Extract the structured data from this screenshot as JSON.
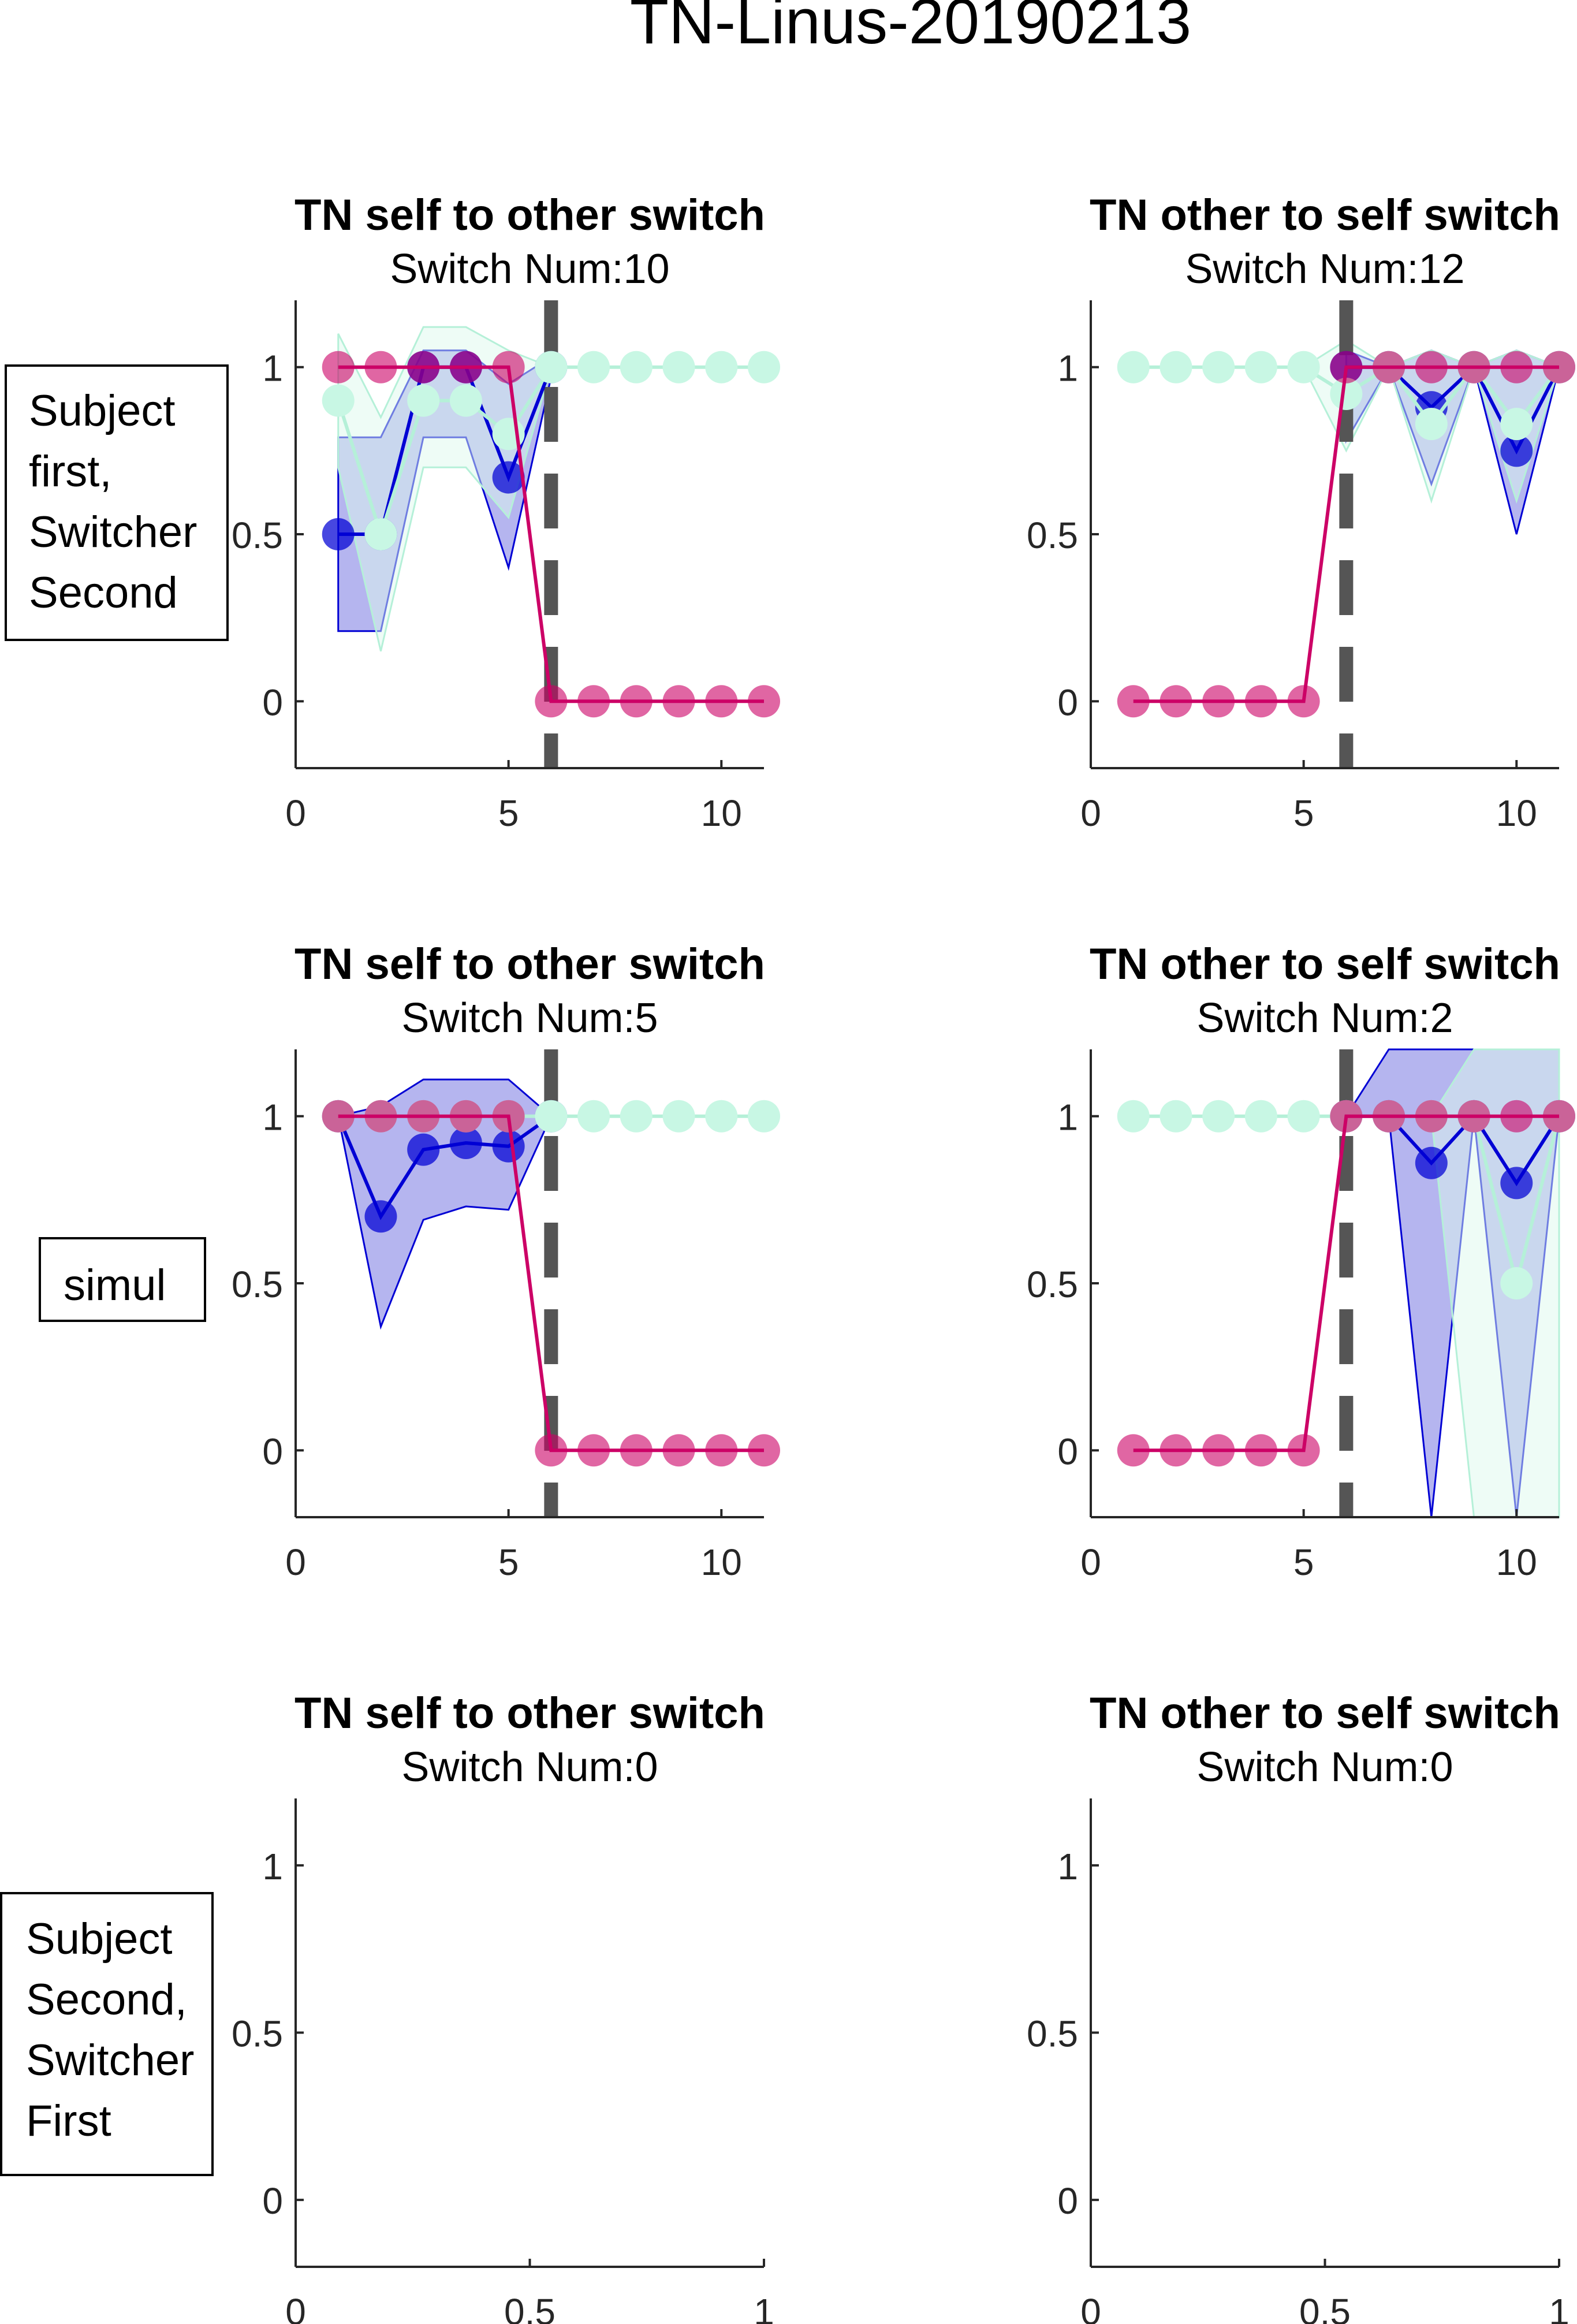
{
  "figure_title": "TN-Linus-20190213",
  "row_labels": [
    [
      "Subject",
      "first,",
      "Switcher",
      "Second"
    ],
    [
      "simul"
    ],
    [
      "Subject",
      "Second,",
      "Switcher",
      "First"
    ]
  ],
  "colors": {
    "blue": "#0000d4",
    "blue_fill": "#6b6bdf",
    "mint": "#c8f7e4",
    "mint_line": "#b5f0d8",
    "mint_fill": "#ddfaee",
    "magenta": "#cc0066",
    "dashed_switch_line": "#555555",
    "axis": "#262626"
  },
  "chart_data": [
    {
      "type": "line",
      "title": "TN self to other switch",
      "subtitle": "Switch Num:10",
      "xlim": [
        0,
        11
      ],
      "ylim": [
        -0.2,
        1.2
      ],
      "xticks": [
        0,
        5,
        10
      ],
      "yticks": [
        0,
        0.5,
        1
      ],
      "switch_x": 6,
      "series": [
        {
          "color": "blue",
          "x": [
            1,
            2,
            3,
            4,
            5,
            6
          ],
          "y": [
            0.5,
            0.5,
            1,
            1,
            0.67,
            1
          ],
          "band_lo": [
            0.21,
            0.21,
            0.79,
            0.79,
            0.4,
            0.97
          ],
          "band_hi": [
            0.79,
            0.79,
            1.05,
            1.05,
            0.95,
            1.03
          ]
        },
        {
          "color": "mint",
          "x": [
            1,
            2,
            3,
            4,
            5,
            6,
            7,
            8,
            9,
            10,
            11
          ],
          "y": [
            0.9,
            0.5,
            0.9,
            0.9,
            0.8,
            1,
            1,
            1,
            1,
            1,
            1
          ],
          "band_lo": [
            0.7,
            0.15,
            0.7,
            0.7,
            0.55,
            1,
            1,
            1,
            1,
            1,
            1
          ],
          "band_hi": [
            1.1,
            0.85,
            1.12,
            1.12,
            1.05,
            1,
            1,
            1,
            1,
            1,
            1
          ]
        },
        {
          "color": "magenta",
          "x": [
            1,
            2,
            3,
            4,
            5,
            6,
            7,
            8,
            9,
            10,
            11
          ],
          "y": [
            1,
            1,
            1,
            1,
            1,
            0,
            0,
            0,
            0,
            0,
            0
          ]
        }
      ]
    },
    {
      "type": "line",
      "title": "TN other to self switch",
      "subtitle": "Switch Num:12",
      "xlim": [
        0,
        11
      ],
      "ylim": [
        -0.2,
        1.2
      ],
      "xticks": [
        0,
        5,
        10
      ],
      "yticks": [
        0,
        0.5,
        1
      ],
      "switch_x": 6,
      "series": [
        {
          "color": "blue",
          "x": [
            6,
            7,
            8,
            9,
            10,
            11
          ],
          "y": [
            1,
            1,
            0.88,
            1,
            0.75,
            1
          ],
          "band_lo": [
            0.78,
            1,
            0.65,
            1,
            0.5,
            1
          ],
          "band_hi": [
            1.05,
            1,
            1.05,
            1,
            1.05,
            1
          ]
        },
        {
          "color": "mint",
          "x": [
            1,
            2,
            3,
            4,
            5,
            6,
            7,
            8,
            9,
            10,
            11
          ],
          "y": [
            1,
            1,
            1,
            1,
            1,
            0.92,
            1,
            0.83,
            1,
            0.83,
            1
          ],
          "band_lo": [
            1,
            1,
            1,
            1,
            1,
            0.75,
            1,
            0.6,
            1,
            0.6,
            1
          ],
          "band_hi": [
            1,
            1,
            1,
            1,
            1,
            1.08,
            1,
            1.05,
            1,
            1.05,
            1
          ]
        },
        {
          "color": "magenta",
          "x": [
            1,
            2,
            3,
            4,
            5,
            6,
            7,
            8,
            9,
            10,
            11
          ],
          "y": [
            0,
            0,
            0,
            0,
            0,
            1,
            1,
            1,
            1,
            1,
            1
          ]
        }
      ]
    },
    {
      "type": "line",
      "title": "TN self to other switch",
      "subtitle": "Switch Num:5",
      "xlim": [
        0,
        11
      ],
      "ylim": [
        -0.2,
        1.2
      ],
      "xticks": [
        0,
        5,
        10
      ],
      "yticks": [
        0,
        0.5,
        1
      ],
      "switch_x": 6,
      "series": [
        {
          "color": "blue",
          "x": [
            1,
            2,
            3,
            4,
            5,
            6
          ],
          "y": [
            1,
            0.7,
            0.9,
            0.92,
            0.91,
            1
          ],
          "band_lo": [
            1,
            0.37,
            0.69,
            0.73,
            0.72,
            1
          ],
          "band_hi": [
            1,
            1.03,
            1.11,
            1.11,
            1.11,
            1
          ]
        },
        {
          "color": "mint",
          "x": [
            1,
            2,
            3,
            4,
            5,
            6,
            7,
            8,
            9,
            10,
            11
          ],
          "y": [
            1,
            1,
            1,
            1,
            1,
            1,
            1,
            1,
            1,
            1,
            1
          ]
        },
        {
          "color": "magenta",
          "x": [
            1,
            2,
            3,
            4,
            5,
            6,
            7,
            8,
            9,
            10,
            11
          ],
          "y": [
            1,
            1,
            1,
            1,
            1,
            0,
            0,
            0,
            0,
            0,
            0
          ]
        }
      ]
    },
    {
      "type": "line",
      "title": "TN other to self switch",
      "subtitle": "Switch Num:2",
      "xlim": [
        0,
        11
      ],
      "ylim": [
        -0.2,
        1.2
      ],
      "xticks": [
        0,
        5,
        10
      ],
      "yticks": [
        0,
        0.5,
        1
      ],
      "switch_x": 6,
      "series": [
        {
          "color": "blue",
          "x": [
            6,
            7,
            8,
            9,
            10,
            11
          ],
          "y": [
            1,
            1,
            0.86,
            1,
            0.8,
            1
          ],
          "band_lo": [
            1,
            1,
            -0.2,
            1,
            -0.2,
            1
          ],
          "band_hi": [
            1,
            1.2,
            1.2,
            1.2,
            1.2,
            1.2
          ]
        },
        {
          "color": "mint",
          "x": [
            1,
            2,
            3,
            4,
            5,
            6,
            7,
            8,
            9,
            10,
            11
          ],
          "y": [
            1,
            1,
            1,
            1,
            1,
            1,
            1,
            1,
            1,
            0.5,
            1
          ],
          "band_lo": [
            1,
            1,
            1,
            1,
            1,
            1,
            1,
            1,
            -0.2,
            -0.2,
            -0.2
          ],
          "band_hi": [
            1,
            1,
            1,
            1,
            1,
            1,
            1,
            1,
            1.2,
            1.2,
            1.2
          ]
        },
        {
          "color": "magenta",
          "x": [
            1,
            2,
            3,
            4,
            5,
            6,
            7,
            8,
            9,
            10,
            11
          ],
          "y": [
            0,
            0,
            0,
            0,
            0,
            1,
            1,
            1,
            1,
            1,
            1
          ]
        }
      ]
    },
    {
      "type": "line",
      "title": "TN self to other switch",
      "subtitle": "Switch Num:0",
      "xlim": [
        0,
        1
      ],
      "ylim": [
        -0.2,
        1.2
      ],
      "xticks": [
        0,
        0.5,
        1
      ],
      "yticks": [
        0,
        0.5,
        1
      ],
      "series": []
    },
    {
      "type": "line",
      "title": "TN other to self switch",
      "subtitle": "Switch Num:0",
      "xlim": [
        0,
        1
      ],
      "ylim": [
        -0.2,
        1.2
      ],
      "xticks": [
        0,
        0.5,
        1
      ],
      "yticks": [
        0,
        0.5,
        1
      ],
      "series": []
    }
  ]
}
